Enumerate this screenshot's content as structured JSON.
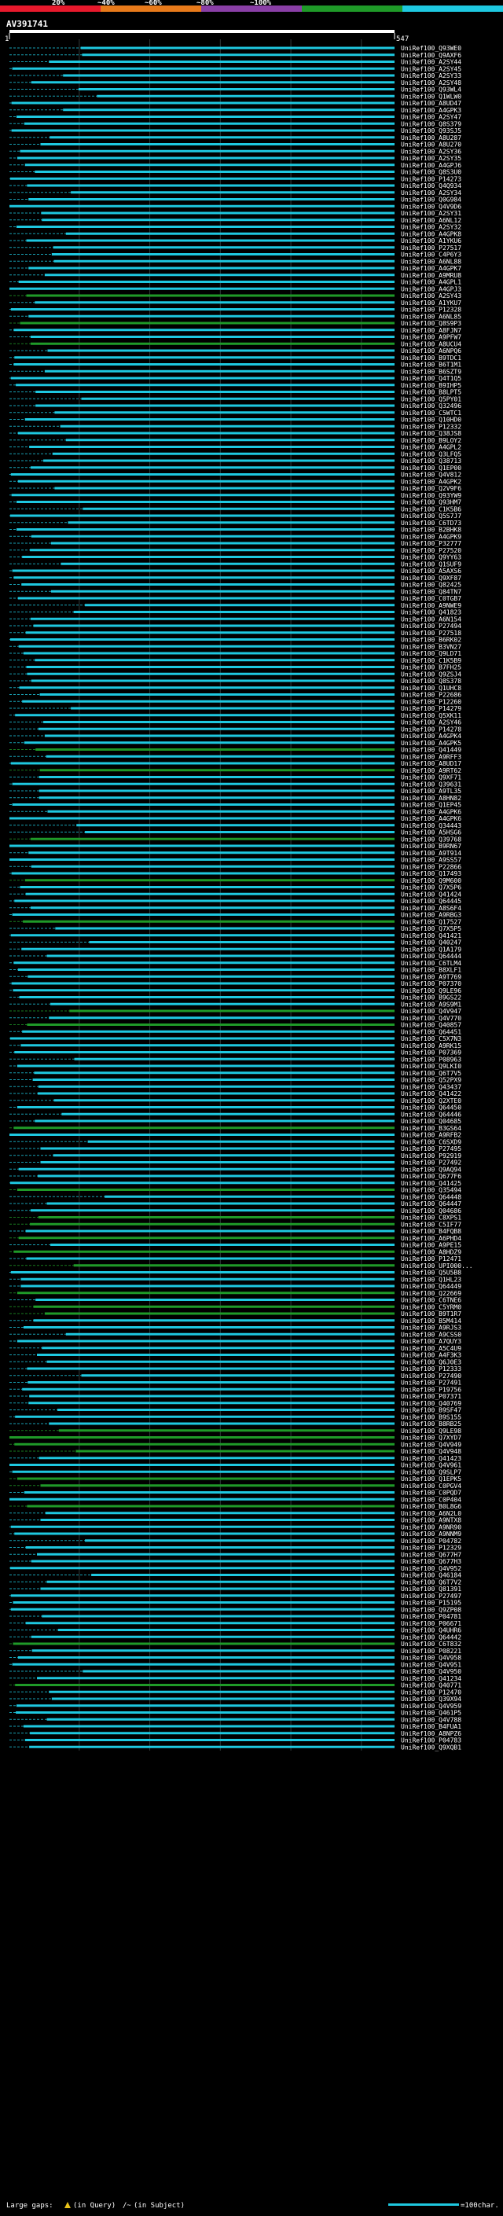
{
  "chart_data": {
    "type": "alignment-overview",
    "query_id": "AV391741",
    "query_start": "1",
    "query_end": "547",
    "identity_legend": [
      {
        "label": "20%",
        "color": "#e8192c"
      },
      {
        "label": "~40%",
        "color": "#e87a1a"
      },
      {
        "label": "~60%",
        "color": "#8a3fa6"
      },
      {
        "label": "~80%",
        "color": "#1f9a28"
      },
      {
        "label": "~100%",
        "color": "#1ec8e0"
      }
    ],
    "xlim": [
      1,
      547
    ],
    "footer": {
      "gaps_label": "Large gaps:",
      "query_gap": "(in Query)",
      "subject_gap": "(in Subject)",
      "scale_label": "=100char."
    },
    "hits": [
      {
        "id": "UniRef100_Q93WE0",
        "c": "cy"
      },
      {
        "id": "UniRef100_Q9AXF6",
        "c": "cy"
      },
      {
        "id": "UniRef100_A2SY44",
        "c": "cy"
      },
      {
        "id": "UniRef100_A2SY45",
        "c": "cy"
      },
      {
        "id": "UniRef100_A2SY33",
        "c": "cy"
      },
      {
        "id": "UniRef100_A2SY48",
        "c": "cy"
      },
      {
        "id": "UniRef100_Q93WL4",
        "c": "cy"
      },
      {
        "id": "UniRef100_Q1WLW0",
        "c": "cy"
      },
      {
        "id": "UniRef100_A8UD47",
        "c": "cy"
      },
      {
        "id": "UniRef100_A4GPK3",
        "c": "cy"
      },
      {
        "id": "UniRef100_A2SY47",
        "c": "cy"
      },
      {
        "id": "UniRef100_Q8S379",
        "c": "cy"
      },
      {
        "id": "UniRef100_Q93SJ5",
        "c": "cy"
      },
      {
        "id": "UniRef100_A8U287",
        "c": "cy"
      },
      {
        "id": "UniRef100_A8U270",
        "c": "cy"
      },
      {
        "id": "UniRef100_A2SY36",
        "c": "cy"
      },
      {
        "id": "UniRef100_A2SY35",
        "c": "cy"
      },
      {
        "id": "UniRef100_A4GPJ6",
        "c": "cy"
      },
      {
        "id": "UniRef100_Q8S3U0",
        "c": "cy"
      },
      {
        "id": "UniRef100_P14273",
        "c": "cy"
      },
      {
        "id": "UniRef100_Q4Q934",
        "c": "cy"
      },
      {
        "id": "UniRef100_A2SY34",
        "c": "cy"
      },
      {
        "id": "UniRef100_Q0G984",
        "c": "cy"
      },
      {
        "id": "UniRef100_Q4V9D6",
        "c": "cy"
      },
      {
        "id": "UniRef100_A2SY31",
        "c": "cy"
      },
      {
        "id": "UniRef100_A6NL12",
        "c": "cy"
      },
      {
        "id": "UniRef100_A2SY32",
        "c": "cy"
      },
      {
        "id": "UniRef100_A4GPK8",
        "c": "cy"
      },
      {
        "id": "UniRef100_A1YKU6",
        "c": "cy"
      },
      {
        "id": "UniRef100_P27517",
        "c": "cy"
      },
      {
        "id": "UniRef100_C4P6Y3",
        "c": "cy"
      },
      {
        "id": "UniRef100_A6NL88",
        "c": "cy"
      },
      {
        "id": "UniRef100_A4GPK7",
        "c": "cy"
      },
      {
        "id": "UniRef100_A9MRU8",
        "c": "cy"
      },
      {
        "id": "UniRef100_A4GPL1",
        "c": "cy"
      },
      {
        "id": "UniRef100_A4GPJ3",
        "c": "cy"
      },
      {
        "id": "UniRef100_A2SY43",
        "c": "gr"
      },
      {
        "id": "UniRef100_A1YKU7",
        "c": "cy"
      },
      {
        "id": "UniRef100_P12328",
        "c": "cy"
      },
      {
        "id": "UniRef100_A6NL85",
        "c": "cy"
      },
      {
        "id": "UniRef100_Q8S9P3",
        "c": "gr"
      },
      {
        "id": "UniRef100_A8FJN7",
        "c": "cy"
      },
      {
        "id": "UniRef100_A9PFW7",
        "c": "cy"
      },
      {
        "id": "UniRef100_A8UCU4",
        "c": "gr"
      },
      {
        "id": "UniRef100_A6NPQ6",
        "c": "cy"
      },
      {
        "id": "UniRef100_B9TDC1",
        "c": "cy"
      },
      {
        "id": "UniRef100_B6T1M1",
        "c": "cy"
      },
      {
        "id": "UniRef100_B6SZT9",
        "c": "cy"
      },
      {
        "id": "UniRef100_Q4T1Q5",
        "c": "cy"
      },
      {
        "id": "UniRef100_B9IHP5",
        "c": "cy"
      },
      {
        "id": "UniRef100_B8LPT5",
        "c": "cy"
      },
      {
        "id": "UniRef100_Q5PY01",
        "c": "cy"
      },
      {
        "id": "UniRef100_Q32496",
        "c": "cy"
      },
      {
        "id": "UniRef100_C5WTC1",
        "c": "cy"
      },
      {
        "id": "UniRef100_Q10HD0",
        "c": "cy"
      },
      {
        "id": "UniRef100_P12332",
        "c": "cy"
      },
      {
        "id": "UniRef100_Q38JS8",
        "c": "cy"
      },
      {
        "id": "UniRef100_B9LOY2",
        "c": "cy"
      },
      {
        "id": "UniRef100_A4GPL2",
        "c": "cy"
      },
      {
        "id": "UniRef100_Q3LFQ5",
        "c": "cy"
      },
      {
        "id": "UniRef100_Q38713",
        "c": "cy"
      },
      {
        "id": "UniRef100_Q1EP00",
        "c": "cy"
      },
      {
        "id": "UniRef100_Q4V812",
        "c": "cy"
      },
      {
        "id": "UniRef100_A4GPK2",
        "c": "cy"
      },
      {
        "id": "UniRef100_Q2V9F6",
        "c": "cy"
      },
      {
        "id": "UniRef100_Q93YW9",
        "c": "cy"
      },
      {
        "id": "UniRef100_Q93HM7",
        "c": "cy"
      },
      {
        "id": "UniRef100_C1K5B6",
        "c": "cy"
      },
      {
        "id": "UniRef100_Q5S7J7",
        "c": "cy"
      },
      {
        "id": "UniRef100_C6TD73",
        "c": "cy"
      },
      {
        "id": "UniRef100_B2BHK8",
        "c": "cy"
      },
      {
        "id": "UniRef100_A4GPK9",
        "c": "cy"
      },
      {
        "id": "UniRef100_P32777",
        "c": "cy"
      },
      {
        "id": "UniRef100_P27520",
        "c": "cy"
      },
      {
        "id": "UniRef100_Q9YY63",
        "c": "cy"
      },
      {
        "id": "UniRef100_Q1SUF9",
        "c": "cy"
      },
      {
        "id": "UniRef100_A5AXS6",
        "c": "cy"
      },
      {
        "id": "UniRef100_Q9XF87",
        "c": "cy"
      },
      {
        "id": "UniRef100_Q82425",
        "c": "cy"
      },
      {
        "id": "UniRef100_Q84TN7",
        "c": "cy"
      },
      {
        "id": "UniRef100_C0TGB7",
        "c": "cy"
      },
      {
        "id": "UniRef100_A9NWE9",
        "c": "cy"
      },
      {
        "id": "UniRef100_Q41823",
        "c": "cy"
      },
      {
        "id": "UniRef100_A6N154",
        "c": "cy"
      },
      {
        "id": "UniRef100_P27494",
        "c": "cy"
      },
      {
        "id": "UniRef100_P27518",
        "c": "cy"
      },
      {
        "id": "UniRef100_B6RK02",
        "c": "cy"
      },
      {
        "id": "UniRef100_B3VN27",
        "c": "cy"
      },
      {
        "id": "UniRef100_Q9LD71",
        "c": "cy"
      },
      {
        "id": "UniRef100_C1K5B9",
        "c": "cy"
      },
      {
        "id": "UniRef100_B7FH25",
        "c": "cy"
      },
      {
        "id": "UniRef100_Q9ZSJ4",
        "c": "cy"
      },
      {
        "id": "UniRef100_Q8S378",
        "c": "cy"
      },
      {
        "id": "UniRef100_Q1UHC8",
        "c": "cy"
      },
      {
        "id": "UniRef100_P22686",
        "c": "cy"
      },
      {
        "id": "UniRef100_P12260",
        "c": "cy"
      },
      {
        "id": "UniRef100_P14279",
        "c": "cy"
      },
      {
        "id": "UniRef100_Q5XK11",
        "c": "cy"
      },
      {
        "id": "UniRef100_A2SY46",
        "c": "cy"
      },
      {
        "id": "UniRef100_P14278",
        "c": "cy"
      },
      {
        "id": "UniRef100_A4GPK4",
        "c": "cy"
      },
      {
        "id": "UniRef100_A4GPK5",
        "c": "cy"
      },
      {
        "id": "UniRef100_Q41449",
        "c": "gr"
      },
      {
        "id": "UniRef100_A9RFF3",
        "c": "cy"
      },
      {
        "id": "UniRef100_A8UD17",
        "c": "cy"
      },
      {
        "id": "UniRef100_A9RT62",
        "c": "gr"
      },
      {
        "id": "UniRef100_Q9XF71",
        "c": "cy"
      },
      {
        "id": "UniRef100_Q39631",
        "c": "cy"
      },
      {
        "id": "UniRef100_A9TL35",
        "c": "cy"
      },
      {
        "id": "UniRef100_A8HN82",
        "c": "cy"
      },
      {
        "id": "UniRef100_Q1EP45",
        "c": "cy"
      },
      {
        "id": "UniRef100_A4GPK6",
        "c": "cy"
      },
      {
        "id": "UniRef100_A4GPK6",
        "c": "cy"
      },
      {
        "id": "UniRef100_Q34443",
        "c": "cy"
      },
      {
        "id": "UniRef100_A5HSG6",
        "c": "cy"
      },
      {
        "id": "UniRef100_Q39768",
        "c": "gr"
      },
      {
        "id": "UniRef100_B9RN67",
        "c": "cy"
      },
      {
        "id": "UniRef100_A9T914",
        "c": "cy"
      },
      {
        "id": "UniRef100_A9SS57",
        "c": "cy"
      },
      {
        "id": "UniRef100_P22866",
        "c": "cy"
      },
      {
        "id": "UniRef100_Q17493",
        "c": "cy"
      },
      {
        "id": "UniRef100_Q9M600",
        "c": "gr"
      },
      {
        "id": "UniRef100_Q7X5P6",
        "c": "cy"
      },
      {
        "id": "UniRef100_Q41424",
        "c": "cy"
      },
      {
        "id": "UniRef100_Q64445",
        "c": "cy"
      },
      {
        "id": "UniRef100_A8S6F4",
        "c": "cy"
      },
      {
        "id": "UniRef100_A9RBG3",
        "c": "cy"
      },
      {
        "id": "UniRef100_Q17527",
        "c": "gr"
      },
      {
        "id": "UniRef100_Q7X5P5",
        "c": "cy"
      },
      {
        "id": "UniRef100_Q41421",
        "c": "cy"
      },
      {
        "id": "UniRef100_Q40247",
        "c": "cy"
      },
      {
        "id": "UniRef100_Q1A179",
        "c": "cy"
      },
      {
        "id": "UniRef100_Q64444",
        "c": "cy"
      },
      {
        "id": "UniRef100_C6TLM4",
        "c": "cy"
      },
      {
        "id": "UniRef100_B8XLF1",
        "c": "cy"
      },
      {
        "id": "UniRef100_A9T769",
        "c": "cy"
      },
      {
        "id": "UniRef100_P07370",
        "c": "cy"
      },
      {
        "id": "UniRef100_Q9LE96",
        "c": "cy"
      },
      {
        "id": "UniRef100_B9GS22",
        "c": "cy"
      },
      {
        "id": "UniRef100_A9S9M1",
        "c": "cy"
      },
      {
        "id": "UniRef100_Q4V947",
        "c": "gr"
      },
      {
        "id": "UniRef100_Q4V770",
        "c": "cy"
      },
      {
        "id": "UniRef100_Q40857",
        "c": "gr"
      },
      {
        "id": "UniRef100_Q64451",
        "c": "cy"
      },
      {
        "id": "UniRef100_C5X7N3",
        "c": "cy"
      },
      {
        "id": "UniRef100_A9RK15",
        "c": "cy"
      },
      {
        "id": "UniRef100_P07369",
        "c": "cy"
      },
      {
        "id": "UniRef100_P08963",
        "c": "cy"
      },
      {
        "id": "UniRef100_Q9LKI0",
        "c": "cy"
      },
      {
        "id": "UniRef100_Q6T7V5",
        "c": "cy"
      },
      {
        "id": "UniRef100_Q52PX9",
        "c": "cy"
      },
      {
        "id": "UniRef100_Q43437",
        "c": "cy"
      },
      {
        "id": "UniRef100_Q41422",
        "c": "cy"
      },
      {
        "id": "UniRef100_Q2XTE0",
        "c": "cy"
      },
      {
        "id": "UniRef100_Q64450",
        "c": "cy"
      },
      {
        "id": "UniRef100_Q64446",
        "c": "cy"
      },
      {
        "id": "UniRef100_Q04685",
        "c": "cy"
      },
      {
        "id": "UniRef100_B3GS64",
        "c": "gr"
      },
      {
        "id": "UniRef100_A9RFB2",
        "c": "cy"
      },
      {
        "id": "UniRef100_C6SXD9",
        "c": "cy"
      },
      {
        "id": "UniRef100_P27495",
        "c": "cy"
      },
      {
        "id": "UniRef100_P92919",
        "c": "cy"
      },
      {
        "id": "UniRef100_P27492",
        "c": "cy"
      },
      {
        "id": "UniRef100_Q9AQ94",
        "c": "cy"
      },
      {
        "id": "UniRef100_Q677F6",
        "c": "cy"
      },
      {
        "id": "UniRef100_Q41425",
        "c": "cy"
      },
      {
        "id": "UniRef100_Q35494",
        "c": "gr"
      },
      {
        "id": "UniRef100_Q64448",
        "c": "cy"
      },
      {
        "id": "UniRef100_Q64447",
        "c": "cy"
      },
      {
        "id": "UniRef100_Q04686",
        "c": "cy"
      },
      {
        "id": "UniRef100_C8XPS1",
        "c": "gr"
      },
      {
        "id": "UniRef100_C5IF77",
        "c": "gr"
      },
      {
        "id": "UniRef100_B4FQB8",
        "c": "cy"
      },
      {
        "id": "UniRef100_A6PHD4",
        "c": "gr"
      },
      {
        "id": "UniRef100_A9PE15",
        "c": "cy"
      },
      {
        "id": "UniRef100_A8HDZ9",
        "c": "gr"
      },
      {
        "id": "UniRef100_P12471",
        "c": "cy"
      },
      {
        "id": "UniRef100_UPI000...",
        "c": "gr"
      },
      {
        "id": "UniRef100_Q5U5B8",
        "c": "cy"
      },
      {
        "id": "UniRef100_Q1HL23",
        "c": "cy"
      },
      {
        "id": "UniRef100_Q64449",
        "c": "cy"
      },
      {
        "id": "UniRef100_Q22669",
        "c": "gr"
      },
      {
        "id": "UniRef100_C6TNE6",
        "c": "cy"
      },
      {
        "id": "UniRef100_C5YRM0",
        "c": "gr"
      },
      {
        "id": "UniRef100_B9T1R7",
        "c": "gr"
      },
      {
        "id": "UniRef100_B5M414",
        "c": "cy"
      },
      {
        "id": "UniRef100_A9RJS3",
        "c": "cy"
      },
      {
        "id": "UniRef100_A9CSS0",
        "c": "cy"
      },
      {
        "id": "UniRef100_A7QUY3",
        "c": "cy"
      },
      {
        "id": "UniRef100_A5C4U9",
        "c": "cy"
      },
      {
        "id": "UniRef100_A4F3K3",
        "c": "cy"
      },
      {
        "id": "UniRef100_Q6J0E3",
        "c": "cy"
      },
      {
        "id": "UniRef100_P12333",
        "c": "cy"
      },
      {
        "id": "UniRef100_P27490",
        "c": "cy"
      },
      {
        "id": "UniRef100_P27491",
        "c": "cy"
      },
      {
        "id": "UniRef100_P19756",
        "c": "cy"
      },
      {
        "id": "UniRef100_P07371",
        "c": "cy"
      },
      {
        "id": "UniRef100_Q40769",
        "c": "cy"
      },
      {
        "id": "UniRef100_B9SF47",
        "c": "cy"
      },
      {
        "id": "UniRef100_B9S155",
        "c": "cy"
      },
      {
        "id": "UniRef100_B8RB25",
        "c": "cy"
      },
      {
        "id": "UniRef100_Q9LE98",
        "c": "gr"
      },
      {
        "id": "UniRef100_Q7XYD7",
        "c": "gr"
      },
      {
        "id": "UniRef100_Q4V949",
        "c": "gr"
      },
      {
        "id": "UniRef100_Q4V948",
        "c": "gr"
      },
      {
        "id": "UniRef100_Q41423",
        "c": "cy"
      },
      {
        "id": "UniRef100_Q4V961",
        "c": "cy"
      },
      {
        "id": "UniRef100_Q9SLP7",
        "c": "cy"
      },
      {
        "id": "UniRef100_Q1EPK5",
        "c": "gr"
      },
      {
        "id": "UniRef100_C0PGV4",
        "c": "gr"
      },
      {
        "id": "UniRef100_C0PQD7",
        "c": "cy"
      },
      {
        "id": "UniRef100_C0P404",
        "c": "cy"
      },
      {
        "id": "UniRef100_B0L8G6",
        "c": "gr"
      },
      {
        "id": "UniRef100_A6N2L0",
        "c": "cy"
      },
      {
        "id": "UniRef100_A9NTX8",
        "c": "cy"
      },
      {
        "id": "UniRef100_A9NR90",
        "c": "cy"
      },
      {
        "id": "UniRef100_A9NNM9",
        "c": "cy"
      },
      {
        "id": "UniRef100_P04782",
        "c": "cy"
      },
      {
        "id": "UniRef100_P12329",
        "c": "cy"
      },
      {
        "id": "UniRef100_Q677H7",
        "c": "cy"
      },
      {
        "id": "UniRef100_Q677H3",
        "c": "cy"
      },
      {
        "id": "UniRef100_Q4V952",
        "c": "cy"
      },
      {
        "id": "UniRef100_Q46184",
        "c": "cy"
      },
      {
        "id": "UniRef100_Q6T7V2",
        "c": "cy"
      },
      {
        "id": "UniRef100_Q81391",
        "c": "cy"
      },
      {
        "id": "UniRef100_P27497",
        "c": "cy"
      },
      {
        "id": "UniRef100_P15195",
        "c": "cy"
      },
      {
        "id": "UniRef100_Q9ZP08",
        "c": "cy"
      },
      {
        "id": "UniRef100_P04781",
        "c": "cy"
      },
      {
        "id": "UniRef100_P06671",
        "c": "cy"
      },
      {
        "id": "UniRef100_Q4UHR6",
        "c": "cy"
      },
      {
        "id": "UniRef100_Q64442",
        "c": "cy"
      },
      {
        "id": "UniRef100_C6T832",
        "c": "gr"
      },
      {
        "id": "UniRef100_P08221",
        "c": "cy"
      },
      {
        "id": "UniRef100_Q4V958",
        "c": "cy"
      },
      {
        "id": "UniRef100_Q4V951",
        "c": "cy"
      },
      {
        "id": "UniRef100_Q4V950",
        "c": "cy"
      },
      {
        "id": "UniRef100_Q41234",
        "c": "cy"
      },
      {
        "id": "UniRef100_Q40771",
        "c": "gr"
      },
      {
        "id": "UniRef100_P12470",
        "c": "cy"
      },
      {
        "id": "UniRef100_Q39X94",
        "c": "cy"
      },
      {
        "id": "UniRef100_Q4V959",
        "c": "cy"
      },
      {
        "id": "UniRef100_Q461P5",
        "c": "cy"
      },
      {
        "id": "UniRef100_Q4V788",
        "c": "cy"
      },
      {
        "id": "UniRef100_B4FUA1",
        "c": "cy"
      },
      {
        "id": "UniRef100_A8NPZ6",
        "c": "cy"
      },
      {
        "id": "UniRef100_P04783",
        "c": "cy"
      },
      {
        "id": "UniRef100_Q9XQB1",
        "c": "cy"
      }
    ]
  }
}
